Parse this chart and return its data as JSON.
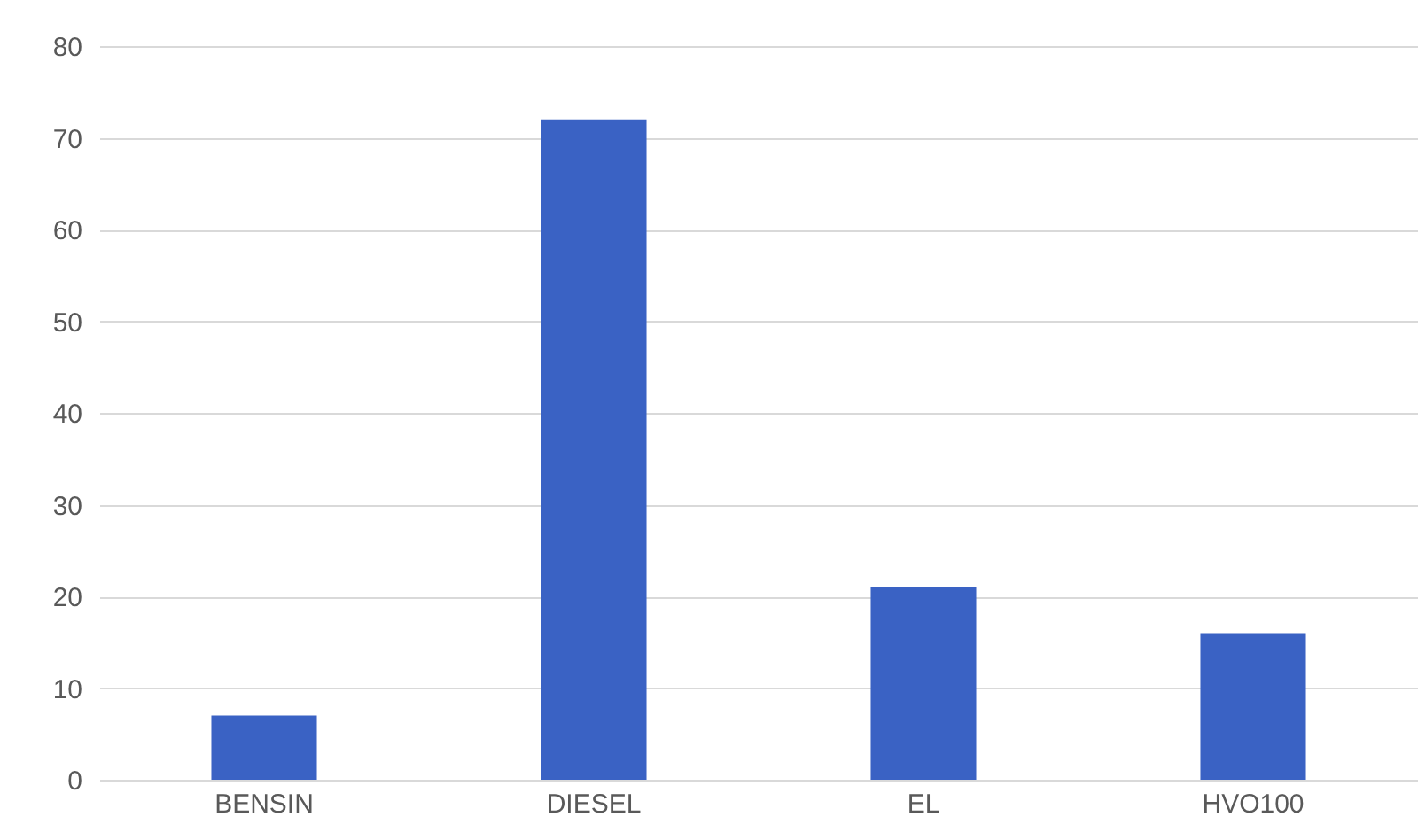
{
  "chart_data": {
    "type": "bar",
    "categories": [
      "BENSIN",
      "DIESEL",
      "EL",
      "HVO100"
    ],
    "values": [
      7,
      72,
      21,
      16
    ],
    "color": "#3a62c4",
    "ylim": [
      0,
      80
    ],
    "yticks": [
      0,
      10,
      20,
      30,
      40,
      50,
      60,
      70,
      80
    ],
    "grid": "y"
  }
}
